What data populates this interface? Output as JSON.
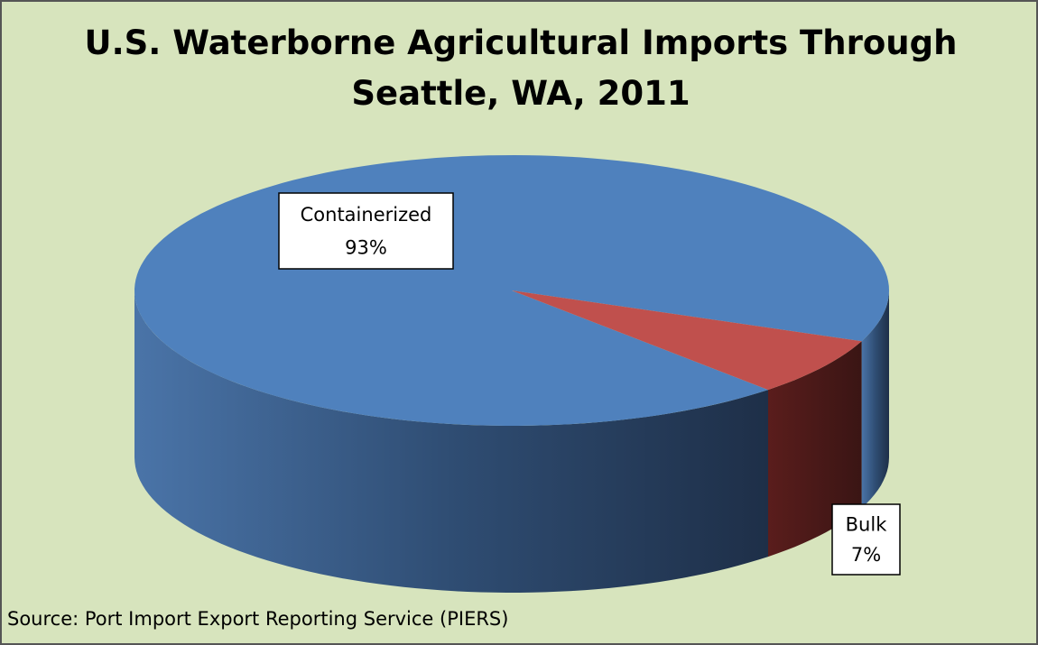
{
  "chart_data": {
    "type": "pie",
    "title": "U.S. Waterborne Agricultural Imports Through Seattle, WA, 2011",
    "categories": [
      "Containerized",
      "Bulk"
    ],
    "values": [
      93,
      7
    ],
    "value_labels": [
      "93%",
      "7%"
    ],
    "colors": [
      "#4f81bd",
      "#c0504d"
    ],
    "source": "Source: Port Import Export Reporting Service (PIERS)"
  }
}
